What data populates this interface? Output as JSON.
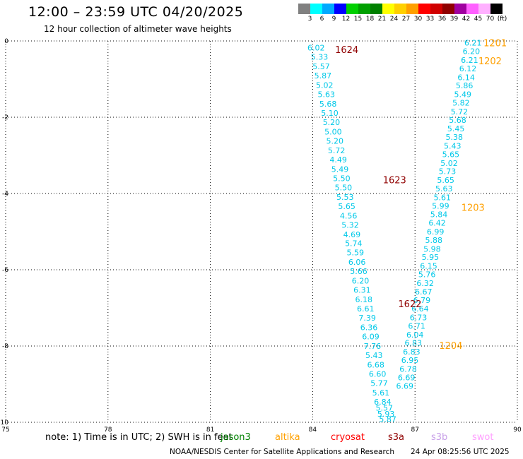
{
  "header": {
    "title": "12:00 – 23:59 UTC 04/20/2025",
    "subtitle": "12 hour collection of altimeter wave heights"
  },
  "color_scale": {
    "labels": [
      "3",
      "6",
      "9",
      "12",
      "15",
      "18",
      "21",
      "24",
      "27",
      "30",
      "33",
      "36",
      "39",
      "42",
      "45",
      "70",
      "(ft)"
    ],
    "colors": [
      "#808080",
      "#00ffff",
      "#00aaff",
      "#0000ff",
      "#00d000",
      "#00a000",
      "#008000",
      "#ffff00",
      "#ffd000",
      "#ffa000",
      "#ff0000",
      "#d00000",
      "#900000",
      "#a000a0",
      "#ff60ff",
      "#ffb0ff",
      "#000000"
    ]
  },
  "note": "note: 1) Time is in UTC; 2) SWH is in feet",
  "legend": [
    {
      "label": "jason3",
      "color": "#008000"
    },
    {
      "label": "altika",
      "color": "#ffa000"
    },
    {
      "label": "cryosat",
      "color": "#ff0000"
    },
    {
      "label": "s3a",
      "color": "#900000"
    },
    {
      "label": "s3b",
      "color": "#c8a0e8"
    },
    {
      "label": "swot",
      "color": "#ffa0ff"
    }
  ],
  "footer": {
    "credit": "NOAA/NESDIS Center for Satellite Applications and Research",
    "timestamp": "24 Apr 08:25:56 UTC 2025"
  },
  "chart_data": {
    "type": "scatter",
    "xlim": [
      75,
      90
    ],
    "ylim": [
      -10,
      0
    ],
    "x_ticks": [
      75,
      78,
      81,
      84,
      87,
      90
    ],
    "y_ticks": [
      0,
      -2,
      -4,
      -6,
      -8,
      -10
    ],
    "grid": true,
    "series": [
      {
        "name": "s3a",
        "color": "#00c8e8",
        "points": [
          {
            "x": 84.1,
            "y": -0.18,
            "v": "6.02"
          },
          {
            "x": 84.2,
            "y": -0.42,
            "v": "5.33"
          },
          {
            "x": 84.25,
            "y": -0.67,
            "v": "5.57"
          },
          {
            "x": 84.3,
            "y": -0.91,
            "v": "5.87"
          },
          {
            "x": 84.35,
            "y": -1.16,
            "v": "5.02"
          },
          {
            "x": 84.4,
            "y": -1.4,
            "v": "5.63"
          },
          {
            "x": 84.45,
            "y": -1.65,
            "v": "5.68"
          },
          {
            "x": 84.5,
            "y": -1.89,
            "v": "5.10"
          },
          {
            "x": 84.55,
            "y": -2.13,
            "v": "5.20"
          },
          {
            "x": 84.6,
            "y": -2.38,
            "v": "5.00"
          },
          {
            "x": 84.65,
            "y": -2.62,
            "v": "5.20"
          },
          {
            "x": 84.7,
            "y": -2.87,
            "v": "5.72"
          },
          {
            "x": 84.75,
            "y": -3.11,
            "v": "4.49"
          },
          {
            "x": 84.8,
            "y": -3.36,
            "v": "5.49"
          },
          {
            "x": 84.85,
            "y": -3.6,
            "v": "5.50"
          },
          {
            "x": 84.9,
            "y": -3.84,
            "v": "5.50"
          },
          {
            "x": 84.95,
            "y": -4.09,
            "v": "5.53"
          },
          {
            "x": 85.0,
            "y": -4.33,
            "v": "5.65"
          },
          {
            "x": 85.05,
            "y": -4.58,
            "v": "4.56"
          },
          {
            "x": 85.1,
            "y": -4.82,
            "v": "5.32"
          },
          {
            "x": 85.15,
            "y": -5.07,
            "v": "4.69"
          },
          {
            "x": 85.2,
            "y": -5.31,
            "v": "5.74"
          },
          {
            "x": 85.25,
            "y": -5.55,
            "v": "5.59"
          },
          {
            "x": 85.3,
            "y": -5.8,
            "v": "6.06"
          },
          {
            "x": 85.35,
            "y": -6.04,
            "v": "5.66"
          },
          {
            "x": 85.4,
            "y": -6.29,
            "v": "6.20"
          },
          {
            "x": 85.45,
            "y": -6.53,
            "v": "6.31"
          },
          {
            "x": 85.5,
            "y": -6.78,
            "v": "6.18"
          },
          {
            "x": 85.55,
            "y": -7.02,
            "v": "6.61"
          },
          {
            "x": 85.6,
            "y": -7.26,
            "v": "7.39"
          },
          {
            "x": 85.65,
            "y": -7.51,
            "v": "6.36"
          },
          {
            "x": 85.7,
            "y": -7.75,
            "v": "6.09"
          },
          {
            "x": 85.75,
            "y": -8.0,
            "v": "7.76"
          },
          {
            "x": 85.8,
            "y": -8.24,
            "v": "5.43"
          },
          {
            "x": 85.85,
            "y": -8.49,
            "v": "6.68"
          },
          {
            "x": 85.9,
            "y": -8.73,
            "v": "6.60"
          },
          {
            "x": 85.95,
            "y": -8.97,
            "v": "5.77"
          },
          {
            "x": 86.0,
            "y": -9.22,
            "v": "5.61"
          },
          {
            "x": 86.05,
            "y": -9.46,
            "v": "6.84"
          },
          {
            "x": 86.1,
            "y": -9.62,
            "v": "5.57"
          },
          {
            "x": 86.15,
            "y": -9.78,
            "v": "5.93"
          },
          {
            "x": 86.2,
            "y": -9.92,
            "v": "5.87"
          }
        ]
      },
      {
        "name": "altika",
        "color": "#00c8e8",
        "points": [
          {
            "x": 88.7,
            "y": -0.05,
            "v": "6.21"
          },
          {
            "x": 88.65,
            "y": -0.27,
            "v": "6.20"
          },
          {
            "x": 88.6,
            "y": -0.5,
            "v": "6.21"
          },
          {
            "x": 88.55,
            "y": -0.72,
            "v": "6.12"
          },
          {
            "x": 88.5,
            "y": -0.95,
            "v": "6.14"
          },
          {
            "x": 88.45,
            "y": -1.17,
            "v": "5.86"
          },
          {
            "x": 88.4,
            "y": -1.4,
            "v": "5.49"
          },
          {
            "x": 88.35,
            "y": -1.62,
            "v": "5.82"
          },
          {
            "x": 88.3,
            "y": -1.85,
            "v": "5.72"
          },
          {
            "x": 88.25,
            "y": -2.07,
            "v": "5.68"
          },
          {
            "x": 88.2,
            "y": -2.3,
            "v": "5.45"
          },
          {
            "x": 88.15,
            "y": -2.52,
            "v": "5.38"
          },
          {
            "x": 88.1,
            "y": -2.75,
            "v": "5.43"
          },
          {
            "x": 88.05,
            "y": -2.97,
            "v": "5.65"
          },
          {
            "x": 88.0,
            "y": -3.2,
            "v": "5.02"
          },
          {
            "x": 87.95,
            "y": -3.42,
            "v": "5.73"
          },
          {
            "x": 87.9,
            "y": -3.65,
            "v": "5.65"
          },
          {
            "x": 87.85,
            "y": -3.87,
            "v": "5.63"
          },
          {
            "x": 87.8,
            "y": -4.1,
            "v": "5.61"
          },
          {
            "x": 87.75,
            "y": -4.32,
            "v": "5.99"
          },
          {
            "x": 87.7,
            "y": -4.55,
            "v": "5.84"
          },
          {
            "x": 87.65,
            "y": -4.77,
            "v": "6.42"
          },
          {
            "x": 87.6,
            "y": -5.0,
            "v": "6.99"
          },
          {
            "x": 87.55,
            "y": -5.22,
            "v": "5.88"
          },
          {
            "x": 87.5,
            "y": -5.45,
            "v": "5.98"
          },
          {
            "x": 87.45,
            "y": -5.67,
            "v": "5.95"
          },
          {
            "x": 87.4,
            "y": -5.9,
            "v": "6.15"
          },
          {
            "x": 87.35,
            "y": -6.12,
            "v": "5.76"
          },
          {
            "x": 87.3,
            "y": -6.35,
            "v": "6.32"
          },
          {
            "x": 87.25,
            "y": -6.57,
            "v": "6.67"
          },
          {
            "x": 87.2,
            "y": -6.8,
            "v": "6.79"
          },
          {
            "x": 87.15,
            "y": -7.02,
            "v": "6.64"
          },
          {
            "x": 87.1,
            "y": -7.25,
            "v": "6.73"
          },
          {
            "x": 87.05,
            "y": -7.47,
            "v": "6.71"
          },
          {
            "x": 87.0,
            "y": -7.7,
            "v": "6.04"
          },
          {
            "x": 86.95,
            "y": -7.92,
            "v": "6.83"
          },
          {
            "x": 86.9,
            "y": -8.15,
            "v": "6.83"
          },
          {
            "x": 86.85,
            "y": -8.37,
            "v": "6.95"
          },
          {
            "x": 86.8,
            "y": -8.6,
            "v": "6.78"
          },
          {
            "x": 86.75,
            "y": -8.82,
            "v": "6.69"
          },
          {
            "x": 86.7,
            "y": -9.05,
            "v": "6.69"
          }
        ]
      }
    ],
    "time_labels": [
      {
        "x": 85.0,
        "y": -0.22,
        "text": "1624",
        "color": "#900000"
      },
      {
        "x": 89.35,
        "y": -0.05,
        "text": "1201",
        "color": "#ffa000"
      },
      {
        "x": 89.2,
        "y": -0.52,
        "text": "1202",
        "color": "#ffa000"
      },
      {
        "x": 86.4,
        "y": -3.64,
        "text": "1623",
        "color": "#900000"
      },
      {
        "x": 88.7,
        "y": -4.36,
        "text": "1203",
        "color": "#ffa000"
      },
      {
        "x": 86.85,
        "y": -6.89,
        "text": "1622",
        "color": "#900000"
      },
      {
        "x": 88.05,
        "y": -7.98,
        "text": "1204",
        "color": "#ffa000"
      }
    ]
  }
}
